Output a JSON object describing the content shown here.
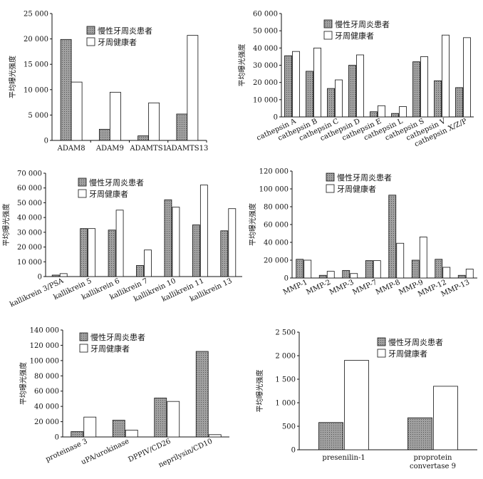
{
  "colors": {
    "patient_fill": "#9a9a9a",
    "patient_hatch": "#5a5a5a",
    "healthy_fill": "#ffffff",
    "stroke": "#111111"
  },
  "chart_data": [
    {
      "type": "bar",
      "ylabel": "平均曝光强度",
      "categories": [
        "ADAM8",
        "ADAM9",
        "ADAMTS1",
        "ADAMTS13"
      ],
      "series": [
        {
          "name": "慢性牙周炎患者",
          "values": [
            19900,
            2200,
            900,
            5200
          ]
        },
        {
          "name": "牙周健康者",
          "values": [
            11500,
            9500,
            7400,
            20700
          ]
        }
      ],
      "ylim": [
        0,
        25000
      ],
      "yticks": [
        "0",
        "5 000",
        "10 000",
        "15 000",
        "20 000",
        "25 000"
      ],
      "legend": "top-right",
      "cat_rotate": false
    },
    {
      "type": "bar",
      "ylabel": "平均曝光强度",
      "categories": [
        "cathepsin A",
        "cathepsin B",
        "cathepsin C",
        "cathepsin D",
        "cathepsin E",
        "cathepsin L",
        "cathepsin S",
        "cathepsin V",
        "cathepsin X/Z/P"
      ],
      "series": [
        {
          "name": "慢性牙周炎患者",
          "values": [
            35500,
            26500,
            16500,
            30000,
            3000,
            2000,
            32000,
            21000,
            17000
          ]
        },
        {
          "name": "牙周健康者",
          "values": [
            38000,
            40000,
            21500,
            36000,
            6500,
            6000,
            35000,
            47500,
            46000
          ]
        }
      ],
      "ylim": [
        0,
        60000
      ],
      "yticks": [
        "0",
        "10 000",
        "20 000",
        "30 000",
        "40 000",
        "50 000",
        "60 000"
      ],
      "legend": "top-right",
      "cat_rotate": true
    },
    {
      "type": "bar",
      "ylabel": "平均曝光强度",
      "categories": [
        "kallikrein 3/PSA",
        "kallikrein 5",
        "kallikrein 6",
        "kallikrein 7",
        "kallikrein 10",
        "kallikrein 11",
        "kallikrein 13"
      ],
      "series": [
        {
          "name": "慢性牙周炎患者",
          "values": [
            1000,
            32500,
            31500,
            7500,
            52000,
            35000,
            31000
          ]
        },
        {
          "name": "牙周健康者",
          "values": [
            2000,
            32500,
            45000,
            18000,
            47000,
            62000,
            46000
          ]
        }
      ],
      "ylim": [
        0,
        70000
      ],
      "yticks": [
        "0",
        "10 000",
        "20 000",
        "30 000",
        "40 000",
        "50 000",
        "60 000",
        "70 000"
      ],
      "legend": "top-right",
      "cat_rotate": true
    },
    {
      "type": "bar",
      "ylabel": "平均曝光强度",
      "categories": [
        "MMP-1",
        "MMP-2",
        "MMP-3",
        "MMP-7",
        "MMP-8",
        "MMP-9",
        "MMP-12",
        "MMP-13"
      ],
      "series": [
        {
          "name": "慢性牙周炎患者",
          "values": [
            21000,
            3000,
            8500,
            19500,
            93000,
            20000,
            21000,
            3000
          ]
        },
        {
          "name": "牙周健康者",
          "values": [
            20000,
            7500,
            5000,
            19500,
            39000,
            46000,
            12000,
            10000
          ]
        }
      ],
      "ylim": [
        0,
        120000
      ],
      "yticks": [
        "0",
        "20 000",
        "40 000",
        "60 000",
        "80 000",
        "100 000",
        "120 000"
      ],
      "legend": "top-right",
      "cat_rotate": true
    },
    {
      "type": "bar",
      "ylabel": "平均曝光强度",
      "categories": [
        "proteinase 3",
        "uPA/urokinase",
        "DPPIV/CD26",
        "neprilysin/CD10"
      ],
      "series": [
        {
          "name": "慢性牙周炎患者",
          "values": [
            7000,
            22000,
            51000,
            112000
          ]
        },
        {
          "name": "牙周健康者",
          "values": [
            26000,
            9000,
            46500,
            3000
          ]
        }
      ],
      "ylim": [
        0,
        140000
      ],
      "yticks": [
        "0",
        "20 000",
        "40 000",
        "60 000",
        "80 000",
        "100 000",
        "120 000",
        "140 000"
      ],
      "legend": "top-right",
      "cat_rotate": true
    },
    {
      "type": "bar",
      "ylabel": "平均曝光强度",
      "categories": [
        "presenilin-1",
        "proprotein convertase 9"
      ],
      "series": [
        {
          "name": "慢性牙周炎患者",
          "values": [
            580,
            680
          ]
        },
        {
          "name": "牙周健康者",
          "values": [
            1900,
            1350
          ]
        }
      ],
      "ylim": [
        0,
        2500
      ],
      "yticks": [
        "0",
        "500",
        "1 000",
        "1 500",
        "2 000",
        "2 500"
      ],
      "legend": "top-right",
      "cat_rotate": false
    }
  ]
}
